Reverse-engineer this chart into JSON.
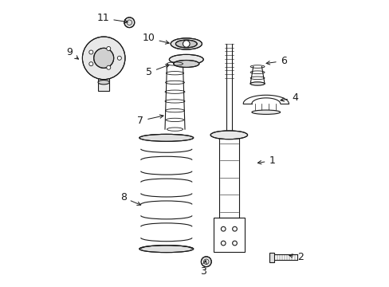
{
  "title": "",
  "background_color": "#ffffff",
  "figure_width": 4.89,
  "figure_height": 3.6,
  "dpi": 100,
  "line_color": "#1a1a1a",
  "label_fontsize": 9,
  "line_width": 0.8
}
